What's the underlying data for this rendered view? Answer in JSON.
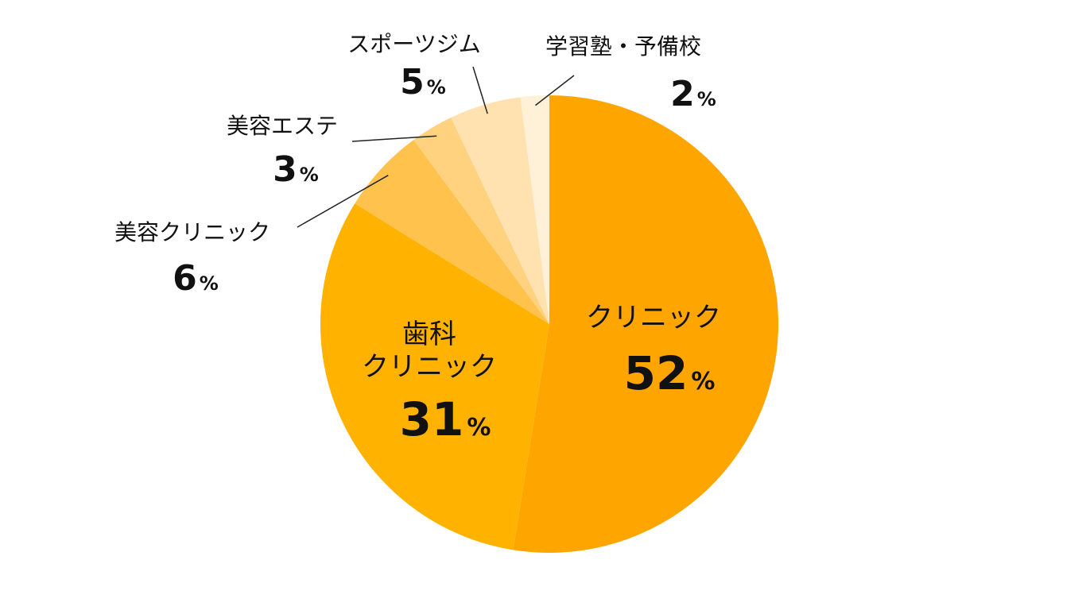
{
  "chart_data": {
    "type": "pie",
    "start_angle_deg": 0,
    "direction": "clockwise",
    "slices": [
      {
        "label": "クリニック",
        "value": 52,
        "unit": "%",
        "color": "#FFA500"
      },
      {
        "label_lines": [
          "歯科",
          "クリニック"
        ],
        "label": "歯科クリニック",
        "value": 31,
        "unit": "%",
        "color": "#FFB300"
      },
      {
        "label": "美容クリニック",
        "value": 6,
        "unit": "%",
        "color": "#FFC34D"
      },
      {
        "label": "美容エステ",
        "value": 3,
        "unit": "%",
        "color": "#FFD27F"
      },
      {
        "label": "スポーツジム",
        "value": 5,
        "unit": "%",
        "color": "#FFE2B0"
      },
      {
        "label": "学習塾・予備校",
        "value": 2,
        "unit": "%",
        "color": "#FFF0D8"
      }
    ]
  }
}
